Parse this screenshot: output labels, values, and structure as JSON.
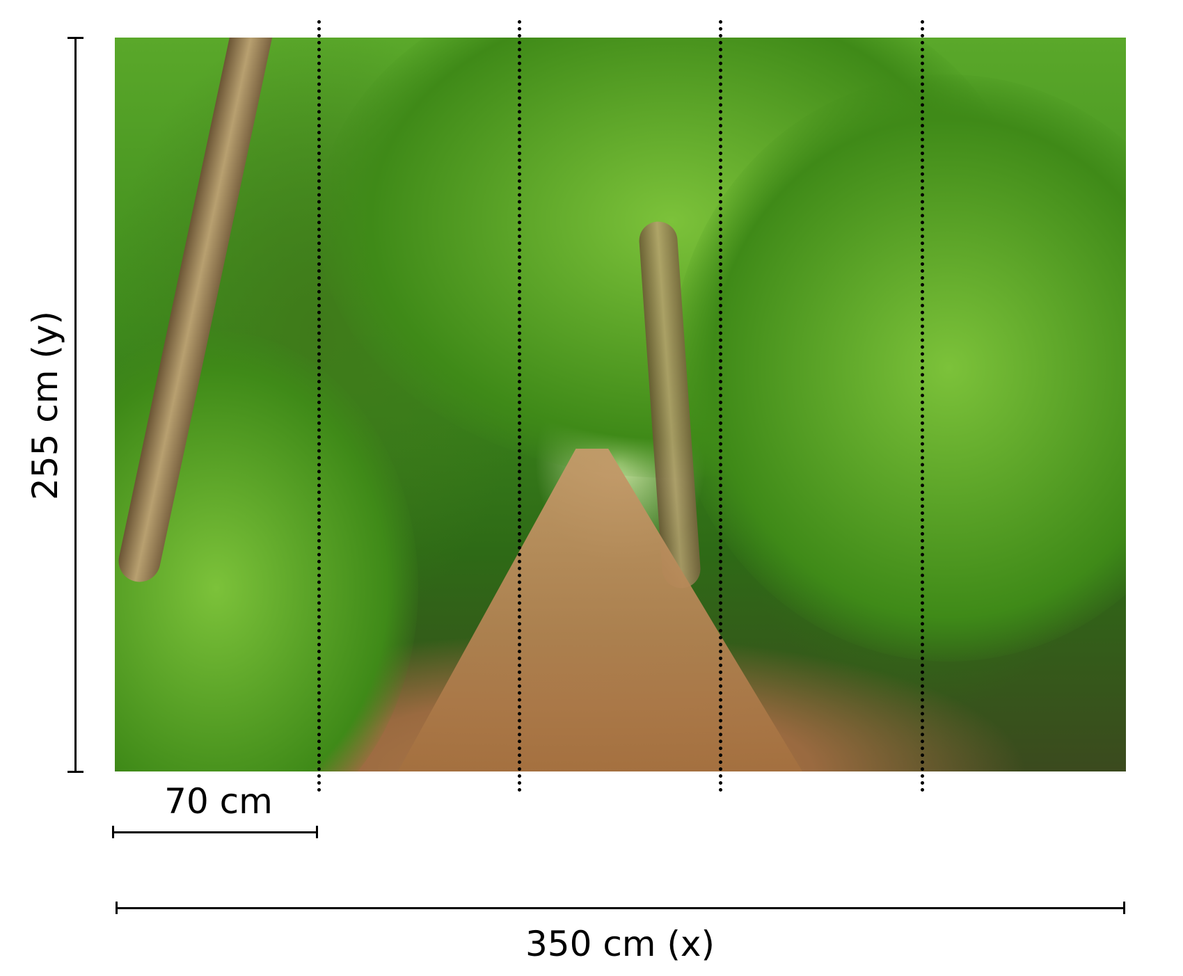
{
  "dimensions": {
    "height_label": "255 cm (y)",
    "width_label": "350 cm (x)",
    "panel_width_label": "70 cm",
    "panel_count": 5
  },
  "photo": {
    "subject": "jungle-path-with-palm-trees"
  }
}
